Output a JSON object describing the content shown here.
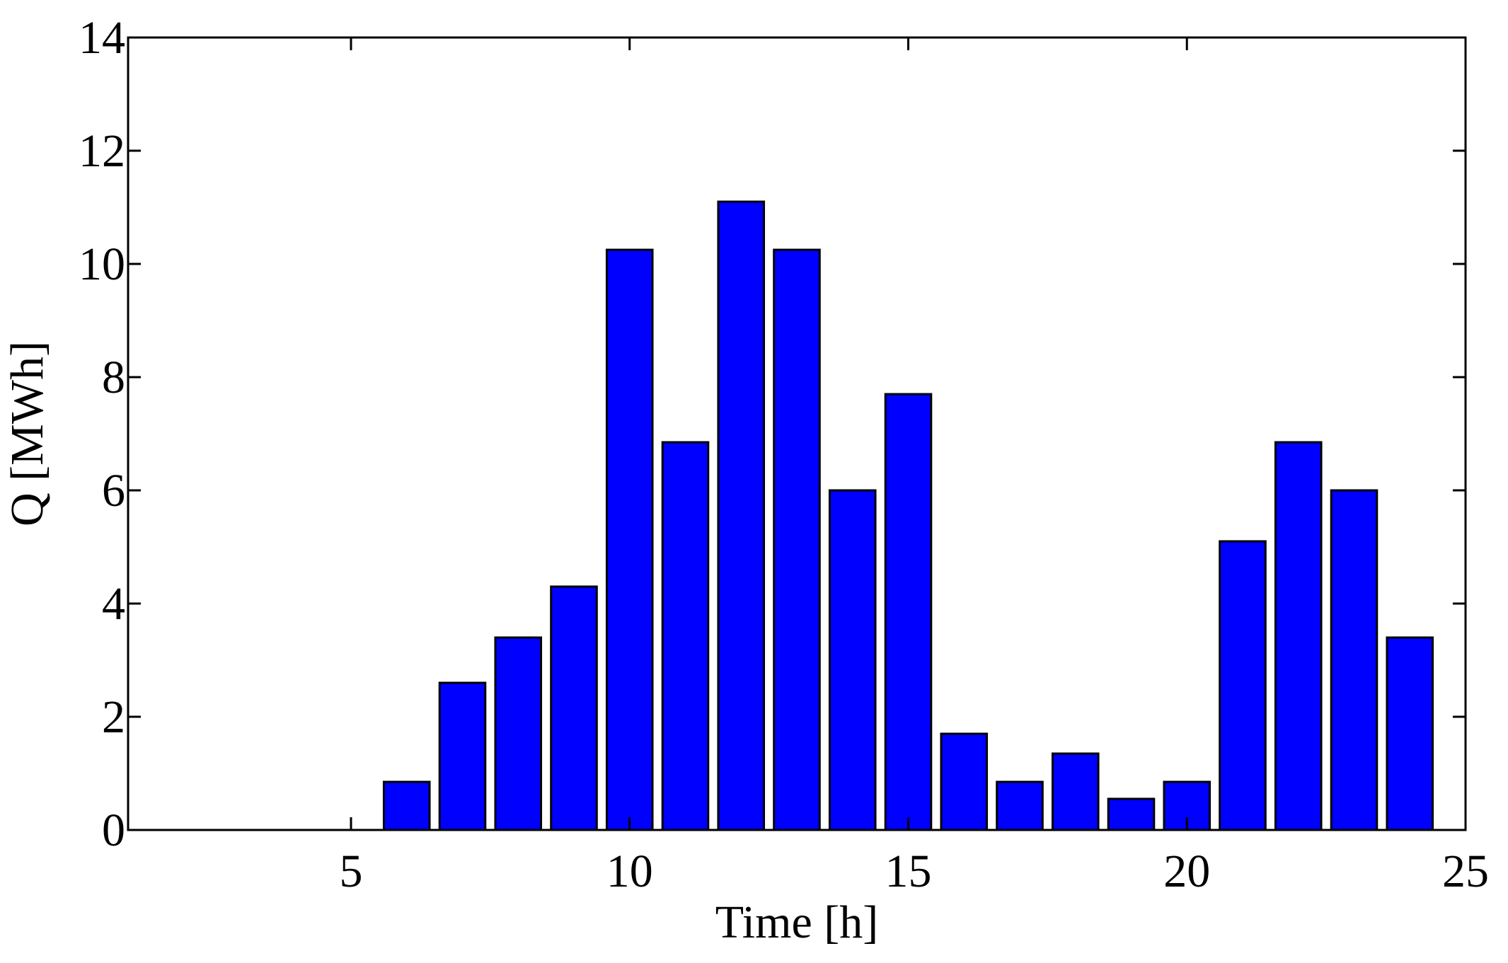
{
  "chart_data": {
    "type": "bar",
    "title": "",
    "xlabel": "Time [h]",
    "ylabel": "Q [MWh]",
    "xlim": [
      1,
      25
    ],
    "ylim": [
      0,
      14
    ],
    "x_ticks": [
      5,
      10,
      15,
      20,
      25
    ],
    "y_ticks": [
      0,
      2,
      4,
      6,
      8,
      10,
      12,
      14
    ],
    "x_tick_labels": [
      "5",
      "10",
      "15",
      "20",
      "25"
    ],
    "y_tick_labels": [
      "0",
      "2",
      "4",
      "6",
      "8",
      "10",
      "12",
      "14"
    ],
    "grid": false,
    "bar_color": "#0000ff",
    "edge_color": "#000000",
    "x": [
      1,
      2,
      3,
      4,
      5,
      6,
      7,
      8,
      9,
      10,
      11,
      12,
      13,
      14,
      15,
      16,
      17,
      18,
      19,
      20,
      21,
      22,
      23,
      24
    ],
    "values": [
      0,
      0,
      0,
      0,
      0,
      0.85,
      2.6,
      3.4,
      4.3,
      10.25,
      6.85,
      11.1,
      10.25,
      6.0,
      7.7,
      1.7,
      0.85,
      1.35,
      0.55,
      0.85,
      5.1,
      6.85,
      6.0,
      3.4
    ]
  }
}
